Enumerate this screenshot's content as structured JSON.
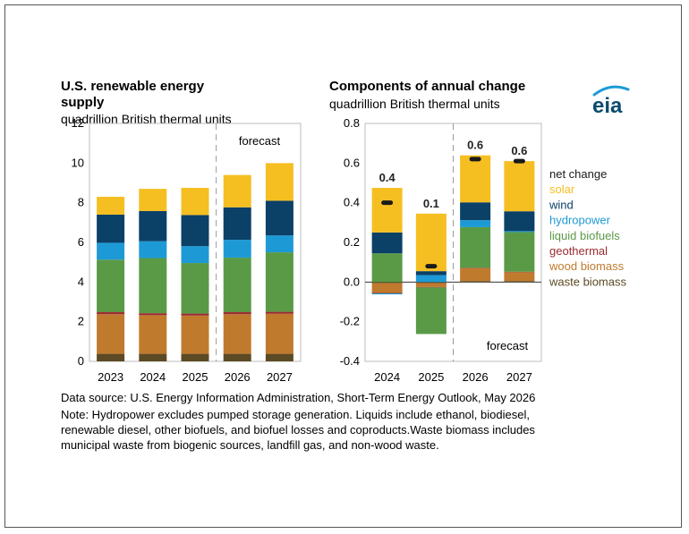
{
  "left": {
    "title1": "U.S. renewable energy",
    "title2": "supply",
    "subtitle": "quadrillion British thermal units"
  },
  "right": {
    "title": "Components of annual change",
    "subtitle": "quadrillion British thermal units"
  },
  "logo": {
    "text": "eia",
    "color": "#0b4b6e",
    "accent": "#1b9ad6"
  },
  "notes": {
    "source": "Data source: U.S. Energy Information Administration, Short-Term Energy Outlook, May 2026",
    "line1": "Note: Hydropower excludes pumped storage generation. Liquids include ethanol, biodiesel,",
    "line2": "renewable diesel, other biofuels, and biofuel losses and coproducts.Waste biomass includes",
    "line3": "municipal waste from biogenic sources, landfill gas, and non-wood waste."
  },
  "colors": {
    "waste biomass": "#5c4a24",
    "wood biomass": "#c07a2e",
    "geothermal": "#9b2a31",
    "liquid biofuels": "#5a9a46",
    "hydropower": "#1d9ad6",
    "wind": "#0b4067",
    "solar": "#f5bf22",
    "net change": "#1a1a1a"
  },
  "chart_data": [
    {
      "type": "bar",
      "stacked": true,
      "categories": [
        "2023",
        "2024",
        "2025",
        "2026",
        "2027"
      ],
      "forecast_label": "forecast",
      "forecast_starts": "2026",
      "ylim": [
        0,
        12
      ],
      "yticks": [
        0,
        2,
        4,
        6,
        8,
        10,
        12
      ],
      "series": [
        {
          "name": "waste biomass",
          "values": [
            0.38,
            0.38,
            0.38,
            0.38,
            0.38
          ]
        },
        {
          "name": "wood biomass",
          "values": [
            2.0,
            1.95,
            1.93,
            2.0,
            2.02
          ]
        },
        {
          "name": "geothermal",
          "values": [
            0.1,
            0.1,
            0.1,
            0.1,
            0.1
          ]
        },
        {
          "name": "liquid biofuels",
          "values": [
            2.65,
            2.78,
            2.55,
            2.75,
            3.0
          ]
        },
        {
          "name": "hydropower",
          "values": [
            0.85,
            0.85,
            0.85,
            0.9,
            0.85
          ]
        },
        {
          "name": "wind",
          "values": [
            1.42,
            1.52,
            1.57,
            1.64,
            1.75
          ]
        },
        {
          "name": "solar",
          "values": [
            0.9,
            1.12,
            1.37,
            1.63,
            1.9
          ]
        }
      ]
    },
    {
      "type": "bar",
      "stacked": true,
      "categories": [
        "2024",
        "2025",
        "2026",
        "2027"
      ],
      "forecast_label": "forecast",
      "forecast_starts": "2026",
      "ylim": [
        -0.4,
        0.8
      ],
      "yticks": [
        -0.4,
        -0.2,
        0.0,
        0.2,
        0.4,
        0.6,
        0.8
      ],
      "ytick_labels": [
        "-0.4",
        "-0.2",
        "0.0",
        "0.2",
        "0.4",
        "0.6",
        "0.8"
      ],
      "series": [
        {
          "name": "waste biomass",
          "values": [
            -0.005,
            -0.005,
            0.005,
            0.005
          ]
        },
        {
          "name": "wood biomass",
          "values": [
            -0.05,
            -0.02,
            0.065,
            0.045
          ]
        },
        {
          "name": "geothermal",
          "values": [
            -0.002,
            -0.002,
            0.002,
            0.002
          ]
        },
        {
          "name": "liquid biofuels",
          "values": [
            0.145,
            -0.235,
            0.205,
            0.2
          ]
        },
        {
          "name": "hydropower",
          "values": [
            -0.005,
            0.035,
            0.035,
            0.005
          ]
        },
        {
          "name": "wind",
          "values": [
            0.105,
            0.02,
            0.09,
            0.1
          ]
        },
        {
          "name": "solar",
          "values": [
            0.225,
            0.29,
            0.237,
            0.253
          ]
        }
      ],
      "net_change": [
        0.4,
        0.08,
        0.62,
        0.61
      ],
      "net_labels": [
        "0.4",
        "0.1",
        "0.6",
        "0.6"
      ],
      "legend": {
        "placement": "right",
        "entries": [
          "net change",
          "solar",
          "wind",
          "hydropower",
          "liquid biofuels",
          "geothermal",
          "wood biomass",
          "waste biomass"
        ]
      }
    }
  ]
}
